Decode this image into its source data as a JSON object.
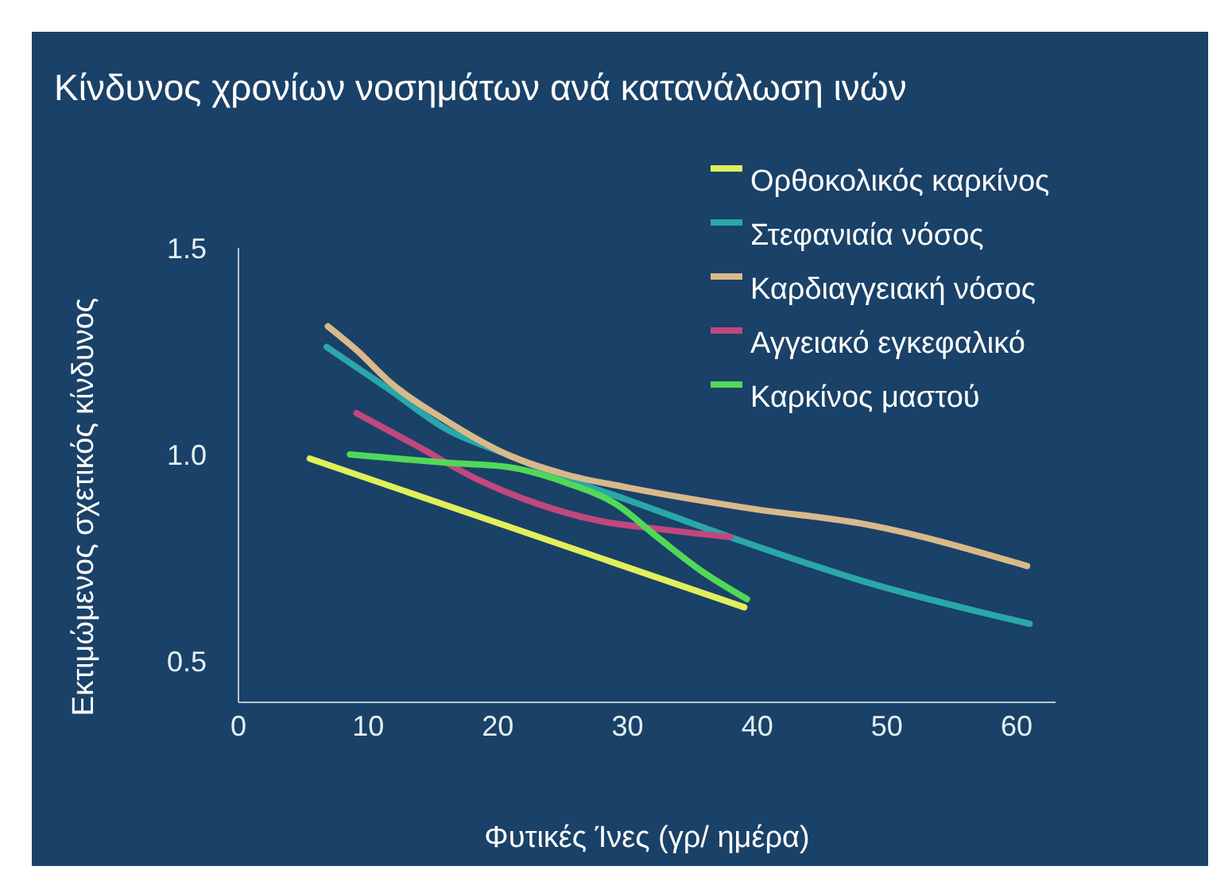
{
  "chart_data": {
    "type": "line",
    "title": "Κίνδυνος χρονίων νοσημάτων ανά κατανάλωση ινών",
    "xlabel": "Φυτικές Ίνες (γρ/ ημέρα)",
    "ylabel": "Εκτιμώμενος σχετικός κίνδυνος",
    "xlim": [
      0,
      63
    ],
    "xticks": [
      0,
      10,
      20,
      30,
      40,
      50,
      60
    ],
    "ylim": [
      0.4,
      1.5
    ],
    "yticks": [
      {
        "value": 0.5,
        "label": "0.5"
      },
      {
        "value": 1.0,
        "label": "1.0"
      },
      {
        "value": 1.5,
        "label": "1.5"
      }
    ],
    "legend": "top right",
    "marker": "none",
    "line_style": "solid",
    "series": [
      {
        "name": "Ορθοκολικός καρκίνος",
        "color": "#e1ef5a",
        "x": [
          5.5,
          39.0
        ],
        "values": [
          0.99,
          0.63
        ]
      },
      {
        "name": "Στεφανιαία νόσος",
        "color": "#2aa7a8",
        "x": [
          6.8,
          11.5,
          16.1,
          20.7,
          25.4,
          30.0,
          37.9,
          48.5,
          61.0
        ],
        "values": [
          1.26,
          1.16,
          1.06,
          1.0,
          0.94,
          0.89,
          0.8,
          0.69,
          0.59
        ]
      },
      {
        "name": "Καρδιαγγειακή νόσος",
        "color": "#d9b98a",
        "x": [
          6.9,
          9.2,
          11.5,
          16.1,
          20.7,
          25.4,
          30.0,
          39.3,
          48.5,
          60.8
        ],
        "values": [
          1.31,
          1.25,
          1.18,
          1.08,
          1.0,
          0.95,
          0.92,
          0.87,
          0.83,
          0.73
        ]
      },
      {
        "name": "Αγγειακό εγκεφαλικό",
        "color": "#c2477f",
        "x": [
          9.1,
          13.8,
          18.4,
          23.1,
          27.7,
          32.3,
          37.9
        ],
        "values": [
          1.1,
          1.02,
          0.94,
          0.88,
          0.84,
          0.82,
          0.8
        ]
      },
      {
        "name": "Καρκίνος μαστού",
        "color": "#52d857",
        "x": [
          8.6,
          16.1,
          20.7,
          25.4,
          29.1,
          32.3,
          35.6,
          39.2
        ],
        "values": [
          1.0,
          0.98,
          0.97,
          0.93,
          0.88,
          0.8,
          0.72,
          0.65
        ]
      }
    ]
  }
}
